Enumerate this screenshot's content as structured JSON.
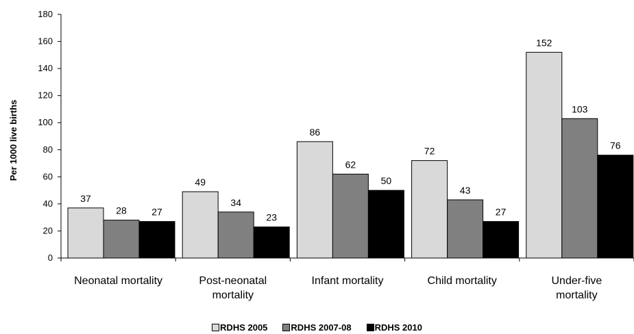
{
  "chart_data": {
    "type": "bar",
    "ylabel": "Per 1000 live births",
    "xlabel": "",
    "ylim": [
      0,
      180
    ],
    "yticks": [
      0,
      20,
      40,
      60,
      80,
      100,
      120,
      140,
      160,
      180
    ],
    "grid": false,
    "legend_position": "bottom",
    "categories": [
      [
        "Neonatal mortality"
      ],
      [
        "Post-neonatal",
        "mortality"
      ],
      [
        "Infant mortality"
      ],
      [
        "Child mortality"
      ],
      [
        "Under-five",
        "mortality"
      ]
    ],
    "series": [
      {
        "name": "RDHS 2005",
        "color": "#d9d9d9",
        "values": [
          37,
          49,
          86,
          72,
          152
        ]
      },
      {
        "name": "RDHS 2007-08",
        "color": "#808080",
        "values": [
          28,
          34,
          62,
          43,
          103
        ]
      },
      {
        "name": "RDHS 2010",
        "color": "#000000",
        "values": [
          27,
          23,
          50,
          27,
          76
        ]
      }
    ]
  }
}
